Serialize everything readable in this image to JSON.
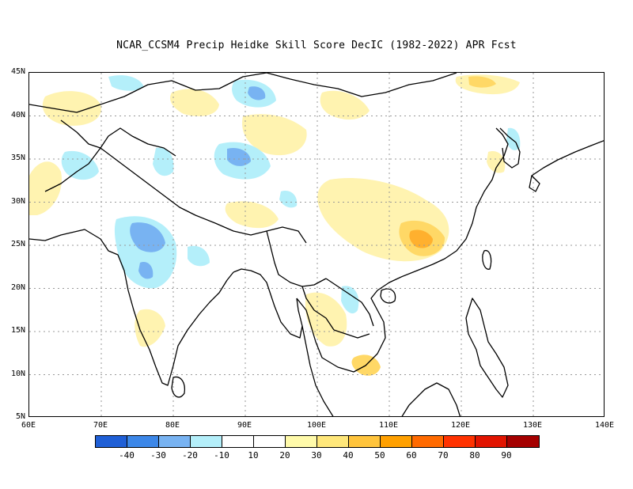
{
  "title": "NCAR_CCSM4 Precip Heidke Skill Score DecIC (1982-2022) APR Fcst",
  "lat_labels": [
    "45N",
    "40N",
    "35N",
    "30N",
    "25N",
    "20N",
    "15N",
    "10N",
    "5N"
  ],
  "lon_labels": [
    "60E",
    "70E",
    "80E",
    "90E",
    "100E",
    "110E",
    "120E",
    "130E",
    "140E"
  ],
  "extent": {
    "lon_min": 60,
    "lon_max": 140,
    "lat_min": 5,
    "lat_max": 45
  },
  "colorbar": {
    "colors": [
      "#1f5fd6",
      "#3c87e8",
      "#78b3f2",
      "#b4effa",
      "#ffffff",
      "#fffaaa",
      "#ffe77a",
      "#ffc43c",
      "#ffa000",
      "#ff6a00",
      "#ff3200",
      "#e11400",
      "#a50000"
    ],
    "labels": [
      "-40",
      "-30",
      "-20",
      "-10",
      "10",
      "20",
      "30",
      "40",
      "50",
      "60",
      "70",
      "80",
      "90"
    ]
  },
  "colors": {
    "skill_pos_light": "#fff3b0",
    "skill_pos_mid": "#ffd866",
    "skill_pos_strong": "#ffb02e",
    "skill_neg_light": "#b4effa",
    "skill_neg_mid": "#78b3f2",
    "skill_neg_strong": "#3c87e8",
    "coast": "#000000",
    "grid": "#999999"
  }
}
